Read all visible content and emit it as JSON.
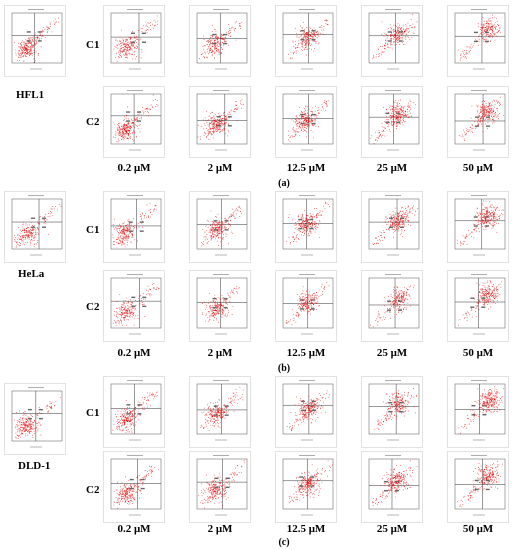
{
  "figure": {
    "concentrations": [
      "0.2 μM",
      "2 μM",
      "12.5 μM",
      "25 μM",
      "50 μM"
    ],
    "rows": [
      "C1",
      "C2"
    ],
    "panels": [
      {
        "id": "a",
        "cell_line": "HFL1",
        "sublabel": "(a)"
      },
      {
        "id": "b",
        "cell_line": "HeLa",
        "sublabel": "(b)"
      },
      {
        "id": "c",
        "cell_line": "DLD-1",
        "sublabel": "(c)"
      }
    ]
  },
  "chart_data": [
    {
      "type": "scatter",
      "panel": "a",
      "cell_line": "HFL1",
      "plots": [
        "control",
        "C1 0.2 μM",
        "C1 2 μM",
        "C1 12.5 μM",
        "C1 25 μM",
        "C1 50 μM",
        "C2 0.2 μM",
        "C2 2 μM",
        "C2 12.5 μM",
        "C2 25 μM",
        "C2 50 μM"
      ],
      "point_color": "#e00000",
      "grid": false
    },
    {
      "type": "scatter",
      "panel": "b",
      "cell_line": "HeLa",
      "plots": [
        "control",
        "C1 0.2 μM",
        "C1 2 μM",
        "C1 12.5 μM",
        "C1 25 μM",
        "C1 50 μM",
        "C2 0.2 μM",
        "C2 2 μM",
        "C2 12.5 μM",
        "C2 25 μM",
        "C2 50 μM"
      ],
      "point_color": "#e00000",
      "grid": false
    },
    {
      "type": "scatter",
      "panel": "c",
      "cell_line": "DLD-1",
      "plots": [
        "control",
        "C1 0.2 μM",
        "C1 2 μM",
        "C1 12.5 μM",
        "C1 25 μM",
        "C1 50 μM",
        "C2 0.2 μM",
        "C2 2 μM",
        "C2 12.5 μM",
        "C2 25 μM",
        "C2 50 μM"
      ],
      "point_color": "#e00000",
      "grid": false
    }
  ]
}
